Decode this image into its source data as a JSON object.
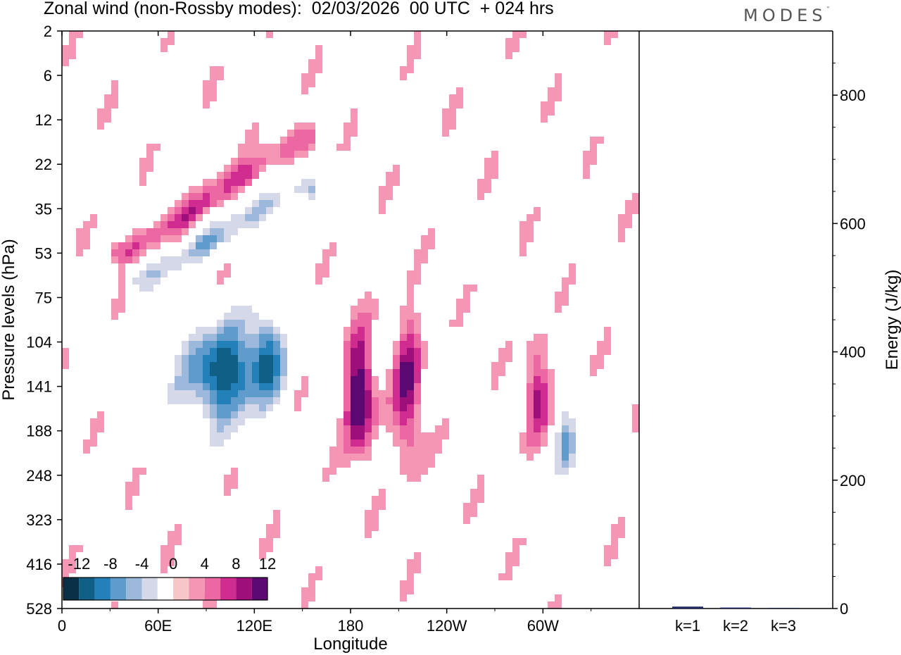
{
  "header": {
    "title": "Zonal wind (non-Rossby modes):  02/03/2026  00 UTC  + 024 hrs",
    "logo_text": "MODES",
    "logo_mark": "°"
  },
  "chart_data": [
    {
      "id": "hovmoller",
      "type": "heatmap",
      "title": "Zonal wind (non-Rossby modes):  02/03/2026  00 UTC  + 024 hrs",
      "xlabel": "Longitude",
      "ylabel": "Pressure levels (hPa)",
      "x_ticks": [
        "0",
        "60E",
        "120E",
        "180",
        "120W",
        "60W"
      ],
      "x_tick_values": [
        0,
        60,
        120,
        180,
        240,
        300
      ],
      "xlim": [
        0,
        360
      ],
      "y_ticks": [
        "2",
        "6",
        "12",
        "22",
        "35",
        "53",
        "75",
        "104",
        "141",
        "188",
        "248",
        "323",
        "416",
        "528"
      ],
      "y_reversed": true,
      "colorbar": {
        "labels": [
          "-12",
          "-8",
          "-4",
          "0",
          "4",
          "8",
          "12"
        ],
        "levels": [
          -14,
          -12,
          -10,
          -8,
          -6,
          -4,
          -2,
          2,
          4,
          6,
          8,
          10,
          12,
          14
        ],
        "colors": [
          "#0a3047",
          "#0f5f87",
          "#2380b8",
          "#5f9ccb",
          "#9cb8da",
          "#d5d8e8",
          "#ffffff",
          "#f7c6c6",
          "#f596b5",
          "#ec68a2",
          "#d02b8e",
          "#9e0f7b",
          "#5c0872"
        ]
      },
      "features": [
        {
          "name": "easterly-core-120e",
          "lon": 100,
          "level_index": 7.7,
          "value": -14,
          "lon_spread": 24,
          "level_spread": 1.1
        },
        {
          "name": "easterly-secondary-130e",
          "lon": 128,
          "level_index": 7.3,
          "value": -10,
          "lon_spread": 10,
          "level_spread": 1.0
        },
        {
          "name": "westerly-core-185",
          "lon": 186,
          "level_index": 8.2,
          "value": 13,
          "lon_spread": 9,
          "level_spread": 1.4
        },
        {
          "name": "westerly-band-200",
          "lon": 216,
          "level_index": 8.1,
          "value": 10,
          "lon_spread": 9,
          "level_spread": 1.6
        },
        {
          "name": "westerly-band-300",
          "lon": 296,
          "level_index": 8.1,
          "value": 8,
          "lon_spread": 8,
          "level_spread": 1.1
        },
        {
          "name": "easterly-spot-320",
          "lon": 315,
          "level_index": 9.4,
          "value": -8,
          "lon_spread": 6,
          "level_spread": 0.8
        },
        {
          "name": "tilted-westerly-band",
          "lon_start": 40,
          "level_start": 5.0,
          "lon_end": 150,
          "level_end": 2.4,
          "value": 8
        },
        {
          "name": "tilted-easterly-band",
          "lon_start": 50,
          "level_start": 5.6,
          "lon_end": 150,
          "level_end": 3.5,
          "value": -8
        }
      ]
    },
    {
      "id": "energy-bars",
      "type": "bar",
      "categories": [
        "k=1",
        "k=2",
        "k=3"
      ],
      "values": [
        3,
        1.5,
        1
      ],
      "ylabel": "Energy (J/kg)",
      "ylim": [
        0,
        900
      ],
      "y_ticks": [
        "0",
        "200",
        "400",
        "600",
        "800"
      ],
      "y_tick_values": [
        0,
        200,
        400,
        600,
        800
      ],
      "bar_color": "#1f2a66"
    }
  ]
}
